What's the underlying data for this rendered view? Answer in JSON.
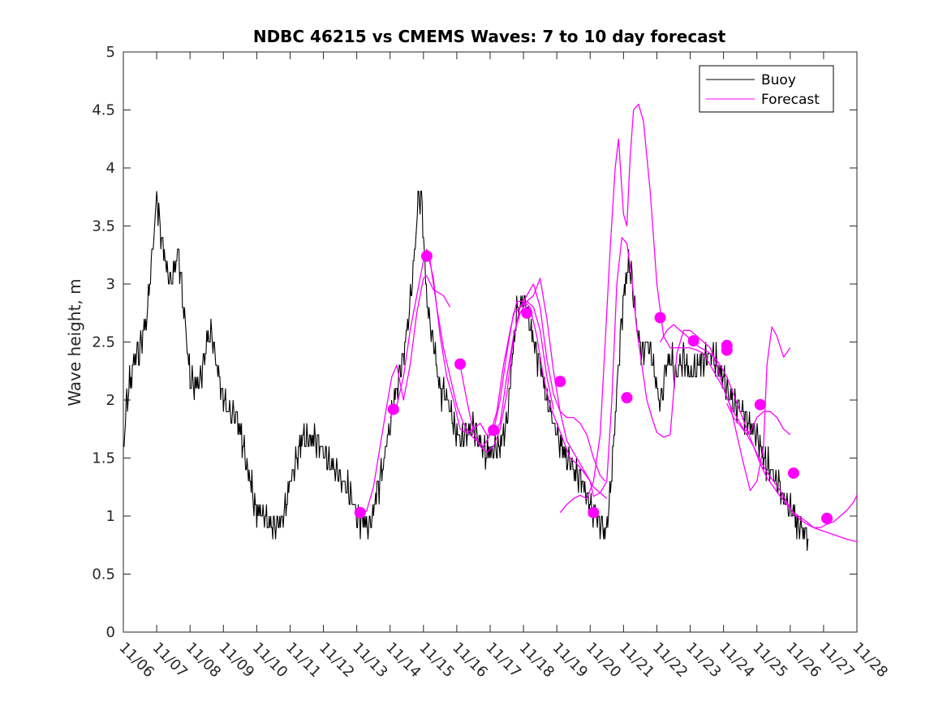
{
  "chart_data": {
    "type": "line",
    "title": "NDBC 46215 vs CMEMS Waves: 7 to 10 day forecast",
    "xlabel": "",
    "ylabel": "Wave height, m",
    "xlim": [
      0,
      22
    ],
    "ylim": [
      0,
      5
    ],
    "x_unit": "days since 11/06 00:00",
    "x_tick_labels": [
      "11/06",
      "11/07",
      "11/08",
      "11/09",
      "11/10",
      "11/11",
      "11/12",
      "11/13",
      "11/14",
      "11/15",
      "11/16",
      "11/17",
      "11/18",
      "11/19",
      "11/20",
      "11/21",
      "11/22",
      "11/23",
      "11/24",
      "11/25",
      "11/26",
      "11/27",
      "11/28"
    ],
    "y_ticks": [
      0,
      0.5,
      1,
      1.5,
      2,
      2.5,
      3,
      3.5,
      4,
      4.5,
      5
    ],
    "y_tick_labels": [
      "0",
      "0.5",
      "1",
      "1.5",
      "2",
      "2.5",
      "3",
      "3.5",
      "4",
      "4.5",
      "5"
    ],
    "legend": {
      "position": "top-right",
      "entries": [
        "Buoy",
        "Forecast"
      ]
    },
    "colors": {
      "buoy": "#000000",
      "forecast": "#ff00ff",
      "markers": "#ff00ff"
    },
    "buoy_envelope": [
      [
        0.0,
        1.55
      ],
      [
        0.1,
        2.0
      ],
      [
        0.3,
        2.3
      ],
      [
        0.5,
        2.45
      ],
      [
        0.7,
        2.7
      ],
      [
        0.85,
        3.2
      ],
      [
        0.95,
        3.55
      ],
      [
        1.0,
        3.75
      ],
      [
        1.1,
        3.5
      ],
      [
        1.25,
        3.2
      ],
      [
        1.4,
        3.0
      ],
      [
        1.5,
        3.1
      ],
      [
        1.65,
        3.3
      ],
      [
        1.8,
        2.8
      ],
      [
        1.9,
        2.5
      ],
      [
        2.0,
        2.2
      ],
      [
        2.2,
        2.1
      ],
      [
        2.35,
        2.25
      ],
      [
        2.5,
        2.5
      ],
      [
        2.65,
        2.6
      ],
      [
        2.8,
        2.3
      ],
      [
        3.0,
        2.0
      ],
      [
        3.2,
        1.9
      ],
      [
        3.4,
        1.85
      ],
      [
        3.6,
        1.6
      ],
      [
        3.8,
        1.3
      ],
      [
        4.0,
        1.05
      ],
      [
        4.2,
        1.0
      ],
      [
        4.4,
        0.95
      ],
      [
        4.6,
        0.92
      ],
      [
        4.8,
        1.0
      ],
      [
        5.0,
        1.3
      ],
      [
        5.2,
        1.5
      ],
      [
        5.35,
        1.65
      ],
      [
        5.5,
        1.65
      ],
      [
        5.7,
        1.68
      ],
      [
        5.9,
        1.6
      ],
      [
        6.1,
        1.5
      ],
      [
        6.3,
        1.4
      ],
      [
        6.5,
        1.35
      ],
      [
        6.7,
        1.25
      ],
      [
        6.9,
        1.1
      ],
      [
        7.0,
        1.0
      ],
      [
        7.2,
        0.95
      ],
      [
        7.4,
        0.9
      ],
      [
        7.6,
        1.2
      ],
      [
        7.8,
        1.45
      ],
      [
        8.0,
        1.8
      ],
      [
        8.2,
        2.1
      ],
      [
        8.35,
        2.3
      ],
      [
        8.5,
        2.6
      ],
      [
        8.65,
        3.0
      ],
      [
        8.75,
        3.3
      ],
      [
        8.85,
        3.8
      ],
      [
        8.95,
        3.7
      ],
      [
        9.05,
        3.1
      ],
      [
        9.15,
        2.7
      ],
      [
        9.3,
        2.5
      ],
      [
        9.5,
        2.1
      ],
      [
        9.7,
        2.0
      ],
      [
        9.9,
        1.8
      ],
      [
        10.1,
        1.65
      ],
      [
        10.3,
        1.7
      ],
      [
        10.5,
        1.75
      ],
      [
        10.7,
        1.65
      ],
      [
        10.9,
        1.55
      ],
      [
        11.1,
        1.55
      ],
      [
        11.3,
        1.6
      ],
      [
        11.5,
        1.8
      ],
      [
        11.65,
        2.3
      ],
      [
        11.8,
        2.75
      ],
      [
        11.95,
        2.85
      ],
      [
        12.1,
        2.8
      ],
      [
        12.3,
        2.5
      ],
      [
        12.5,
        2.3
      ],
      [
        12.7,
        2.0
      ],
      [
        12.9,
        1.8
      ],
      [
        13.1,
        1.65
      ],
      [
        13.3,
        1.5
      ],
      [
        13.5,
        1.4
      ],
      [
        13.7,
        1.3
      ],
      [
        13.9,
        1.2
      ],
      [
        14.1,
        1.0
      ],
      [
        14.3,
        0.95
      ],
      [
        14.45,
        0.85
      ],
      [
        14.55,
        1.0
      ],
      [
        14.7,
        1.6
      ],
      [
        14.85,
        2.3
      ],
      [
        15.0,
        2.9
      ],
      [
        15.15,
        3.2
      ],
      [
        15.25,
        3.05
      ],
      [
        15.4,
        2.6
      ],
      [
        15.55,
        2.4
      ],
      [
        15.7,
        2.5
      ],
      [
        15.85,
        2.4
      ],
      [
        16.0,
        2.1
      ],
      [
        16.1,
        1.95
      ],
      [
        16.25,
        2.25
      ],
      [
        16.4,
        2.35
      ],
      [
        16.6,
        2.2
      ],
      [
        16.8,
        2.4
      ],
      [
        17.0,
        2.2
      ],
      [
        17.2,
        2.3
      ],
      [
        17.4,
        2.35
      ],
      [
        17.6,
        2.4
      ],
      [
        17.8,
        2.3
      ],
      [
        18.0,
        2.2
      ],
      [
        18.2,
        2.0
      ],
      [
        18.4,
        1.95
      ],
      [
        18.6,
        1.9
      ],
      [
        18.8,
        1.75
      ],
      [
        19.0,
        1.7
      ],
      [
        19.2,
        1.5
      ],
      [
        19.4,
        1.4
      ],
      [
        19.6,
        1.3
      ],
      [
        19.8,
        1.15
      ],
      [
        20.0,
        1.05
      ],
      [
        20.2,
        0.95
      ],
      [
        20.4,
        0.88
      ],
      [
        20.55,
        0.82
      ]
    ],
    "forecast_runs": [
      {
        "name": "run-1",
        "x": [
          7.1,
          7.3,
          7.5,
          7.7,
          7.9,
          8.05,
          8.2,
          8.4,
          8.6,
          8.8,
          9.0,
          9.1,
          9.3,
          9.6,
          9.8
        ],
        "y": [
          0.98,
          1.05,
          1.25,
          1.6,
          1.95,
          2.2,
          2.3,
          2.0,
          2.3,
          2.75,
          3.05,
          3.07,
          2.95,
          2.9,
          2.8
        ]
      },
      {
        "name": "run-2",
        "x": [
          8.0,
          8.2,
          8.4,
          8.6,
          8.8,
          9.0,
          9.1,
          9.3,
          9.5,
          9.7,
          9.9,
          10.1,
          10.3,
          10.5,
          10.7,
          10.9,
          11.1,
          11.3,
          11.5,
          11.7,
          11.9,
          12.1,
          12.3,
          12.5,
          12.7,
          12.9
        ],
        "y": [
          1.85,
          1.95,
          2.2,
          2.6,
          2.9,
          3.2,
          3.3,
          3.05,
          2.55,
          2.2,
          2.0,
          1.75,
          1.72,
          1.75,
          1.8,
          1.7,
          1.7,
          1.8,
          2.2,
          2.55,
          2.75,
          2.85,
          2.8,
          2.6,
          2.2,
          1.92
        ]
      },
      {
        "name": "run-3",
        "x": [
          9.0,
          9.2,
          9.4,
          9.6,
          9.8,
          10.0,
          10.2,
          10.4,
          10.6,
          10.8,
          11.0,
          11.2,
          11.4,
          11.6,
          11.8,
          12.0,
          12.2,
          12.4,
          12.6,
          12.8,
          13.0,
          13.2,
          13.4,
          13.6,
          13.8,
          14.0,
          14.1,
          14.3,
          14.5
        ],
        "y": [
          3.2,
          3.2,
          2.8,
          2.45,
          2.2,
          1.95,
          1.8,
          1.7,
          1.65,
          1.6,
          1.7,
          1.9,
          2.3,
          2.6,
          2.85,
          2.85,
          2.8,
          2.55,
          2.2,
          1.95,
          1.8,
          1.65,
          1.5,
          1.45,
          1.38,
          1.3,
          1.17,
          1.2,
          1.15
        ]
      },
      {
        "name": "run-4",
        "x": [
          10.1,
          10.3,
          10.5,
          10.7,
          10.9,
          11.1,
          11.3,
          11.5,
          11.7,
          11.9,
          12.1,
          12.3,
          12.5,
          12.7,
          12.9,
          13.1,
          13.3,
          13.5,
          13.7,
          13.9,
          14.1,
          14.3,
          14.45
        ],
        "y": [
          2.3,
          2.0,
          1.72,
          1.6,
          1.55,
          1.6,
          1.75,
          2.05,
          2.55,
          2.8,
          2.9,
          3.0,
          2.8,
          2.35,
          2.05,
          1.9,
          1.85,
          1.85,
          1.8,
          1.7,
          1.5,
          1.35,
          1.3
        ]
      },
      {
        "name": "run-5",
        "x": [
          11.1,
          11.3,
          11.5,
          11.7,
          11.9,
          12.1,
          12.3,
          12.5,
          12.7,
          12.9,
          13.1,
          13.3,
          13.5,
          13.7,
          13.9,
          14.1,
          14.3,
          14.5,
          14.65,
          14.8,
          14.95,
          15.1,
          15.25,
          15.4,
          15.55,
          15.7,
          15.85,
          16.0,
          16.2,
          16.4,
          16.6,
          16.8,
          17.0,
          17.2,
          17.4,
          17.6,
          17.8,
          18.0,
          18.2,
          18.4,
          18.6,
          18.8,
          19.0,
          19.2,
          19.4,
          19.6,
          19.8,
          20.0
        ],
        "y": [
          1.73,
          2.0,
          2.4,
          2.75,
          2.8,
          2.85,
          2.9,
          3.05,
          2.7,
          2.25,
          1.9,
          1.65,
          1.55,
          1.45,
          1.35,
          1.25,
          1.2,
          1.3,
          2.0,
          3.0,
          3.4,
          3.35,
          3.05,
          2.6,
          2.3,
          2.0,
          1.85,
          1.72,
          1.68,
          1.7,
          2.4,
          2.6,
          2.6,
          2.55,
          2.5,
          2.45,
          2.3,
          2.1,
          1.95,
          1.85,
          1.75,
          1.72,
          1.85,
          1.9,
          1.9,
          1.85,
          1.75,
          1.7
        ]
      },
      {
        "name": "run-6",
        "x": [
          13.1,
          13.3,
          13.5,
          13.7,
          13.9,
          14.1,
          14.3,
          14.45,
          14.6,
          14.75,
          14.85,
          15.0,
          15.1,
          15.2,
          15.3,
          15.45,
          15.6,
          15.8,
          16.0,
          16.2,
          16.4,
          16.6,
          16.8,
          17.0,
          17.2,
          17.4,
          17.6,
          17.8,
          18.0,
          18.2,
          18.4,
          18.6,
          18.8,
          19.0,
          19.2,
          19.3,
          19.45,
          19.6,
          19.8,
          20.0
        ],
        "y": [
          1.03,
          1.1,
          1.15,
          1.18,
          1.15,
          1.3,
          1.7,
          2.5,
          3.3,
          4.0,
          4.25,
          3.6,
          3.5,
          4.1,
          4.5,
          4.55,
          4.4,
          3.8,
          3.0,
          2.55,
          2.45,
          2.45,
          2.45,
          2.45,
          2.43,
          2.4,
          2.3,
          2.2,
          2.1,
          1.95,
          1.7,
          1.45,
          1.22,
          1.3,
          1.6,
          2.3,
          2.63,
          2.55,
          2.37,
          2.45
        ]
      },
      {
        "name": "run-7",
        "x": [
          16.1,
          16.3,
          16.5,
          16.7,
          16.9,
          17.1,
          17.3,
          17.5,
          17.7,
          17.9,
          18.1,
          18.3,
          18.5,
          18.7,
          18.9,
          19.1,
          19.3,
          19.5,
          19.7,
          19.9,
          20.1,
          20.3,
          20.5,
          20.7,
          20.9,
          21.1,
          21.3,
          21.5,
          21.7,
          22.0
        ],
        "y": [
          2.5,
          2.6,
          2.65,
          2.6,
          2.55,
          2.5,
          2.45,
          2.42,
          2.38,
          2.3,
          2.2,
          2.05,
          1.9,
          1.75,
          1.6,
          1.45,
          1.33,
          1.25,
          1.17,
          1.1,
          1.03,
          0.99,
          0.95,
          0.9,
          0.88,
          0.86,
          0.84,
          0.82,
          0.8,
          0.78
        ]
      },
      {
        "name": "run-8",
        "x": [
          18.1,
          18.3,
          18.5,
          18.7,
          18.9,
          19.1,
          19.3,
          19.5,
          19.7,
          19.9,
          20.1,
          20.3,
          20.5,
          20.7,
          20.9,
          21.1,
          21.3,
          21.5,
          21.7,
          21.9,
          22.0
        ],
        "y": [
          1.97,
          1.85,
          1.78,
          1.7,
          1.6,
          1.48,
          1.38,
          1.3,
          1.22,
          1.12,
          1.02,
          0.97,
          0.93,
          0.9,
          0.9,
          0.93,
          0.95,
          1.0,
          1.05,
          1.12,
          1.18
        ]
      }
    ],
    "forecast_markers": {
      "x": [
        7.1,
        8.1,
        9.1,
        10.1,
        11.1,
        12.1,
        13.1,
        14.1,
        15.1,
        16.1,
        17.1,
        18.1,
        18.1,
        19.1,
        20.1,
        21.1
      ],
      "y": [
        1.03,
        1.92,
        3.24,
        2.31,
        1.74,
        2.75,
        2.16,
        1.03,
        2.02,
        2.71,
        2.51,
        2.47,
        2.43,
        1.96,
        1.37,
        0.98
      ]
    }
  }
}
